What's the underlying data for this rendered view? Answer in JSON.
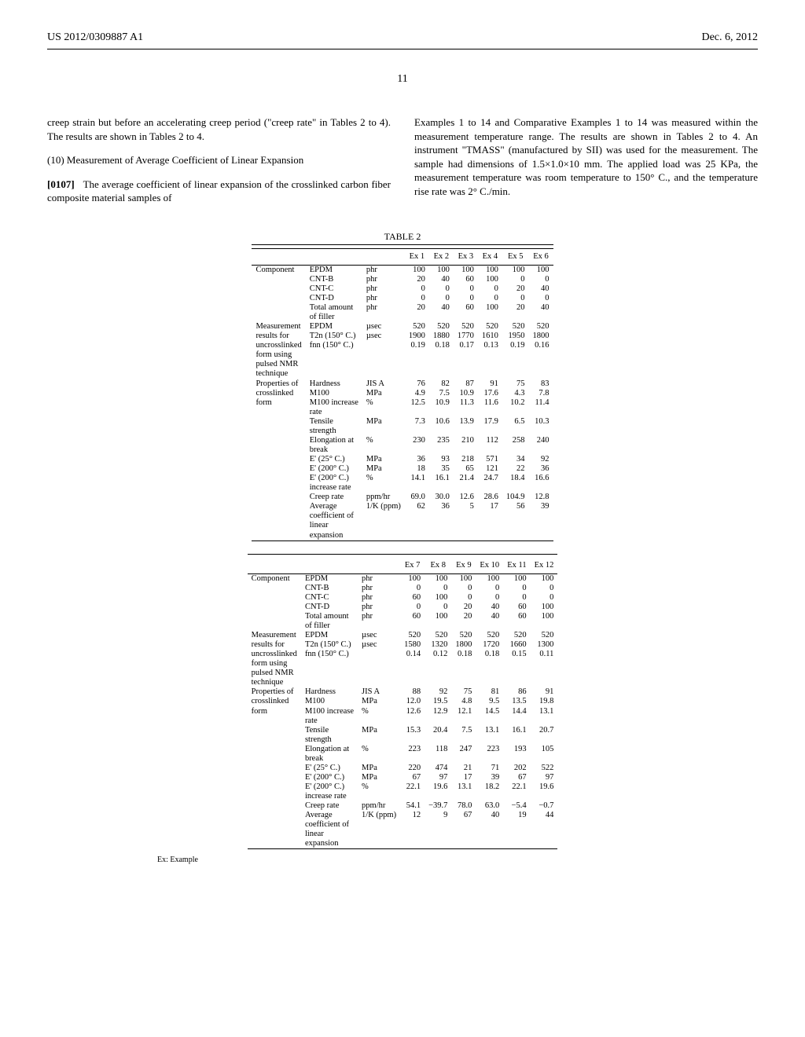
{
  "header": {
    "left": "US 2012/0309887 A1",
    "right": "Dec. 6, 2012"
  },
  "page_number": "11",
  "left_col": {
    "p1": "creep strain but before an accelerating creep period (\"creep rate\" in Tables 2 to 4). The results are shown in Tables 2 to 4.",
    "p2": "(10) Measurement of Average Coefficient of Linear Expansion",
    "p3a": "[0107]",
    "p3b": "The average coefficient of linear expansion of the crosslinked carbon fiber composite material samples of"
  },
  "right_col": {
    "p1": "Examples 1 to 14 and Comparative Examples 1 to 14 was measured within the measurement temperature range. The results are shown in Tables 2 to 4. An instrument \"TMASS\" (manufactured by SII) was used for the measurement. The sample had dimensions of 1.5×1.0×10 mm. The applied load was 25 KPa, the measurement temperature was room temperature to 150° C., and the temperature rise rate was 2° C./min."
  },
  "table_title": "TABLE 2",
  "headers_a": [
    "Ex 1",
    "Ex 2",
    "Ex 3",
    "Ex 4",
    "Ex 5",
    "Ex 6"
  ],
  "headers_b": [
    "Ex 7",
    "Ex 8",
    "Ex 9",
    "Ex 10",
    "Ex 11",
    "Ex 12"
  ],
  "groups": [
    {
      "label": "Component",
      "rows": [
        {
          "name": "EPDM",
          "unit": "phr",
          "a": [
            "100",
            "100",
            "100",
            "100",
            "100",
            "100"
          ],
          "b": [
            "100",
            "100",
            "100",
            "100",
            "100",
            "100"
          ]
        },
        {
          "name": "CNT-B",
          "unit": "phr",
          "a": [
            "20",
            "40",
            "60",
            "100",
            "0",
            "0"
          ],
          "b": [
            "0",
            "0",
            "0",
            "0",
            "0",
            "0"
          ]
        },
        {
          "name": "CNT-C",
          "unit": "phr",
          "a": [
            "0",
            "0",
            "0",
            "0",
            "20",
            "40"
          ],
          "b": [
            "60",
            "100",
            "0",
            "0",
            "0",
            "0"
          ]
        },
        {
          "name": "CNT-D",
          "unit": "phr",
          "a": [
            "0",
            "0",
            "0",
            "0",
            "0",
            "0"
          ],
          "b": [
            "0",
            "0",
            "20",
            "40",
            "60",
            "100"
          ]
        },
        {
          "name": "Total amount of filler",
          "unit": "phr",
          "a": [
            "20",
            "40",
            "60",
            "100",
            "20",
            "40"
          ],
          "b": [
            "60",
            "100",
            "20",
            "40",
            "60",
            "100"
          ]
        }
      ]
    },
    {
      "label": "Measurement results for uncrosslinked form using pulsed NMR technique",
      "rows": [
        {
          "name": "EPDM",
          "unit": "µsec",
          "a": [
            "520",
            "520",
            "520",
            "520",
            "520",
            "520"
          ],
          "b": [
            "520",
            "520",
            "520",
            "520",
            "520",
            "520"
          ]
        },
        {
          "name": "T2n (150° C.)",
          "unit": "µsec",
          "a": [
            "1900",
            "1880",
            "1770",
            "1610",
            "1950",
            "1800"
          ],
          "b": [
            "1580",
            "1320",
            "1800",
            "1720",
            "1660",
            "1300"
          ]
        },
        {
          "name": "fnn (150° C.)",
          "unit": "",
          "a": [
            "0.19",
            "0.18",
            "0.17",
            "0.13",
            "0.19",
            "0.16"
          ],
          "b": [
            "0.14",
            "0.12",
            "0.18",
            "0.18",
            "0.15",
            "0.11"
          ]
        }
      ]
    },
    {
      "label": "Properties of crosslinked form",
      "rows": [
        {
          "name": "Hardness",
          "unit": "JIS A",
          "a": [
            "76",
            "82",
            "87",
            "91",
            "75",
            "83"
          ],
          "b": [
            "88",
            "92",
            "75",
            "81",
            "86",
            "91"
          ]
        },
        {
          "name": "M100",
          "unit": "MPa",
          "a": [
            "4.9",
            "7.5",
            "10.9",
            "17.6",
            "4.3",
            "7.8"
          ],
          "b": [
            "12.0",
            "19.5",
            "4.8",
            "9.5",
            "13.5",
            "19.8"
          ]
        },
        {
          "name": "M100 increase rate",
          "unit": "%",
          "a": [
            "12.5",
            "10.9",
            "11.3",
            "11.6",
            "10.2",
            "11.4"
          ],
          "b": [
            "12.6",
            "12.9",
            "12.1",
            "14.5",
            "14.4",
            "13.1"
          ]
        },
        {
          "name": "Tensile strength",
          "unit": "MPa",
          "a": [
            "7.3",
            "10.6",
            "13.9",
            "17.9",
            "6.5",
            "10.3"
          ],
          "b": [
            "15.3",
            "20.4",
            "7.5",
            "13.1",
            "16.1",
            "20.7"
          ]
        },
        {
          "name": "Elongation at break",
          "unit": "%",
          "a": [
            "230",
            "235",
            "210",
            "112",
            "258",
            "240"
          ],
          "b": [
            "223",
            "118",
            "247",
            "223",
            "193",
            "105"
          ]
        },
        {
          "name": "E' (25° C.)",
          "unit": "MPa",
          "a": [
            "36",
            "93",
            "218",
            "571",
            "34",
            "92"
          ],
          "b": [
            "220",
            "474",
            "21",
            "71",
            "202",
            "522"
          ]
        },
        {
          "name": "E' (200° C.)",
          "unit": "MPa",
          "a": [
            "18",
            "35",
            "65",
            "121",
            "22",
            "36"
          ],
          "b": [
            "67",
            "97",
            "17",
            "39",
            "67",
            "97"
          ]
        },
        {
          "name": "E' (200° C.) increase rate",
          "unit": "%",
          "a": [
            "14.1",
            "16.1",
            "21.4",
            "24.7",
            "18.4",
            "16.6"
          ],
          "b": [
            "22.1",
            "19.6",
            "13.1",
            "18.2",
            "22.1",
            "19.6"
          ]
        },
        {
          "name": "Creep rate",
          "unit": "ppm/hr",
          "a": [
            "69.0",
            "30.0",
            "12.6",
            "28.6",
            "104.9",
            "12.8"
          ],
          "b": [
            "54.1",
            "−39.7",
            "78.0",
            "63.0",
            "−5.4",
            "−0.7"
          ]
        },
        {
          "name": "Average coefficient of linear expansion",
          "unit": "1/K (ppm)",
          "a": [
            "62",
            "36",
            "5",
            "17",
            "56",
            "39"
          ],
          "b": [
            "12",
            "9",
            "67",
            "40",
            "19",
            "44"
          ]
        }
      ]
    }
  ],
  "footnote": "Ex: Example"
}
